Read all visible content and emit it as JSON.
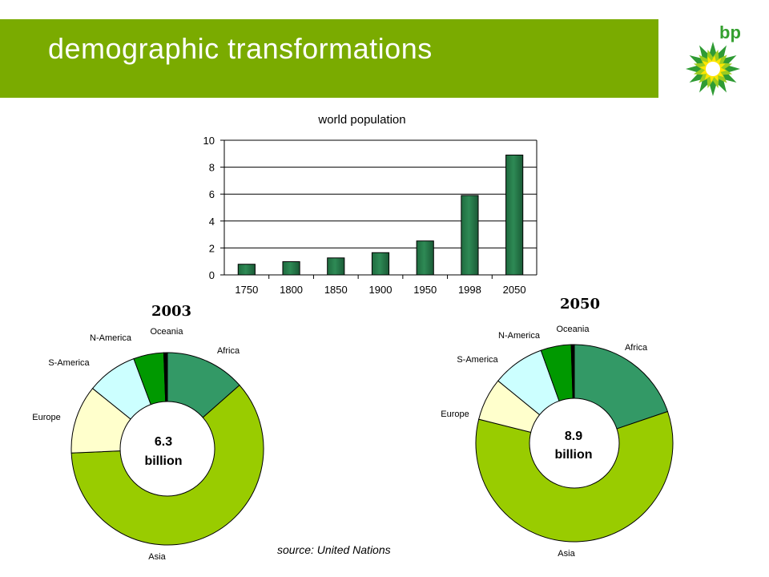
{
  "header": {
    "title": "demographic transformations",
    "logo_text": "bp"
  },
  "footer": {
    "source": "source: United Nations"
  },
  "colors": {
    "header_green": "#7aab00",
    "bar_fill": "#2e8a55",
    "africa": "#339966",
    "asia": "#99cc00",
    "europe": "#ffffcc",
    "s_america": "#ccffff",
    "n_america": "#009900",
    "oceania": "#000000"
  },
  "chart_data": [
    {
      "type": "bar",
      "title": "world population",
      "categories": [
        "1750",
        "1800",
        "1850",
        "1900",
        "1950",
        "1998",
        "2050"
      ],
      "values": [
        0.79,
        0.98,
        1.26,
        1.65,
        2.52,
        5.9,
        8.9
      ],
      "ylim": [
        0,
        10
      ],
      "yticks": [
        "0",
        "2",
        "4",
        "6",
        "8",
        "10"
      ],
      "grid": true,
      "xlabel": "",
      "ylabel": ""
    },
    {
      "type": "pie",
      "title": "2003",
      "center_label": [
        "6.3",
        "billion"
      ],
      "labels": [
        "Africa",
        "Asia",
        "Europe",
        "S-America",
        "N-America",
        "Oceania"
      ],
      "values": [
        13.5,
        60.8,
        11.5,
        8.5,
        5.1,
        0.6
      ]
    },
    {
      "type": "pie",
      "title": "2050",
      "center_label": [
        "8.9",
        "billion"
      ],
      "labels": [
        "Africa",
        "Asia",
        "Europe",
        "S-America",
        "N-America",
        "Oceania"
      ],
      "values": [
        19.8,
        59.1,
        7.0,
        8.6,
        5.0,
        0.5
      ]
    }
  ]
}
